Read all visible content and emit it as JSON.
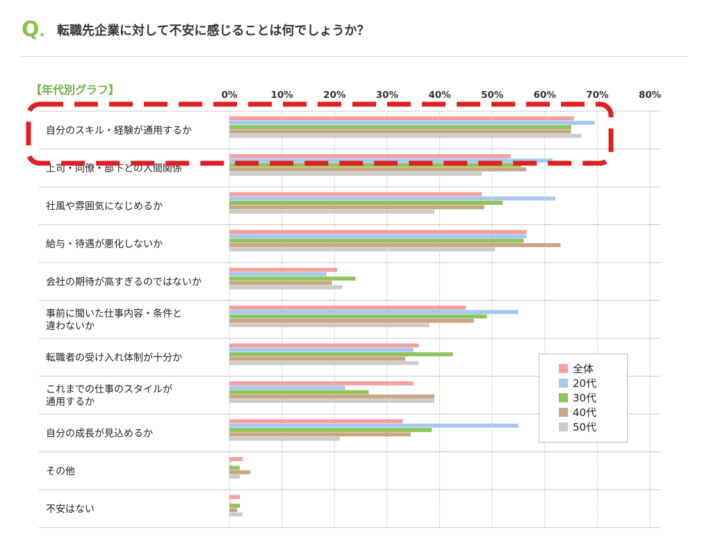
{
  "header": {
    "q_mark": "Q",
    "question": "転職先企業に対して不安に感じることは何でしょうか？"
  },
  "graph_tag": "【年代別グラフ】",
  "colors": {
    "全体": "#f4a09e",
    "20代": "#a6c8ef",
    "30代": "#8fc45a",
    "40代": "#c8a784",
    "50代": "#cccccc",
    "highlight": "#e02020"
  },
  "chart_data": {
    "type": "bar",
    "orientation": "horizontal",
    "title": "",
    "xlabel": "",
    "ylabel": "",
    "xlim": [
      0,
      80
    ],
    "x_ticks": [
      "0%",
      "10%",
      "20%",
      "30%",
      "40%",
      "50%",
      "60%",
      "70%",
      "80%"
    ],
    "grid": "vertical dotted",
    "legend_position": "bottom-right",
    "categories": [
      [
        "自分のスキル・経験が通用するか"
      ],
      [
        "上司・同僚・部下との人間関係"
      ],
      [
        "社風や雰囲気になじめるか"
      ],
      [
        "給与・待遇が悪化しないか"
      ],
      [
        "会社の期待が高すぎるのではないか"
      ],
      [
        "事前に聞いた仕事内容・条件と",
        "違わないか"
      ],
      [
        "転職者の受け入れ体制が十分か"
      ],
      [
        "これまでの仕事のスタイルが",
        "通用するか"
      ],
      [
        "自分の成長が見込めるか"
      ],
      [
        "その他"
      ],
      [
        "不安はない"
      ]
    ],
    "series": [
      {
        "name": "全体",
        "values": [
          65.5,
          53.5,
          48,
          56.5,
          20.5,
          45,
          36,
          35,
          33,
          2.5,
          2
        ]
      },
      {
        "name": "20代",
        "values": [
          69.5,
          61.5,
          62,
          56.5,
          18.5,
          55,
          35,
          22,
          55,
          0.5,
          0.5
        ]
      },
      {
        "name": "30代",
        "values": [
          65,
          55.5,
          52,
          56,
          24,
          49,
          42.5,
          26.5,
          38.5,
          2,
          2
        ]
      },
      {
        "name": "40代",
        "values": [
          65,
          56.5,
          48.5,
          63,
          19.5,
          46.5,
          33.5,
          39,
          34.5,
          4,
          1.5
        ]
      },
      {
        "name": "50代",
        "values": [
          67,
          48,
          39,
          50.5,
          21.5,
          38,
          36,
          39,
          21,
          2,
          2.5
        ]
      }
    ]
  }
}
